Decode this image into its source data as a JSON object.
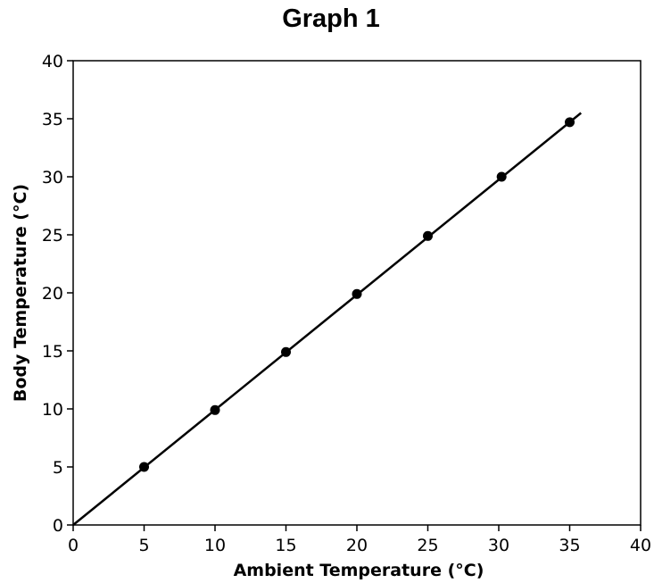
{
  "chart_data": {
    "type": "scatter",
    "title": "Graph 1",
    "xlabel": "Ambient Temperature (°C)",
    "ylabel": "Body Temperature (°C)",
    "xlim": [
      0,
      40
    ],
    "ylim": [
      0,
      40
    ],
    "x_ticks": [
      0,
      5,
      10,
      15,
      20,
      25,
      30,
      35,
      40
    ],
    "y_ticks": [
      0,
      5,
      10,
      15,
      20,
      25,
      30,
      35,
      40
    ],
    "grid": false,
    "series": [
      {
        "points": [
          {
            "x": 5,
            "y": 5
          },
          {
            "x": 10,
            "y": 9.9
          },
          {
            "x": 15,
            "y": 14.9
          },
          {
            "x": 20,
            "y": 19.9
          },
          {
            "x": 25,
            "y": 24.9
          },
          {
            "x": 30.2,
            "y": 30
          },
          {
            "x": 35,
            "y": 34.7
          }
        ],
        "trend_line": {
          "x": [
            0,
            35.8
          ],
          "y": [
            0,
            35.5
          ]
        },
        "color": "#000000"
      }
    ]
  }
}
